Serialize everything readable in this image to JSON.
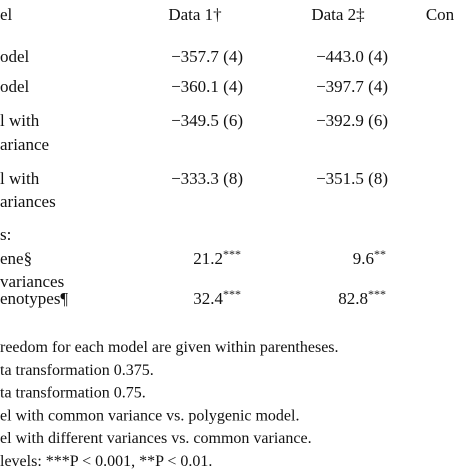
{
  "header": {
    "columns": [
      "el",
      "Data 1†",
      "Data 2‡",
      "Con"
    ]
  },
  "rows": [
    {
      "label": [
        "odel"
      ],
      "data1": "−357.7 (4)",
      "data2": "−443.0 (4)"
    },
    {
      "label": [
        "odel"
      ],
      "data1": "−360.1 (4)",
      "data2": "−397.7 (4)"
    },
    {
      "label": [
        "l with",
        "ariance"
      ],
      "data1": "−349.5 (6)",
      "data2": "−392.9 (6)"
    },
    {
      "label": [
        "l with",
        "ariances"
      ],
      "data1": "−333.3 (8)",
      "data2": "−351.5 (8)"
    },
    {
      "label": [
        "s:"
      ]
    },
    {
      "label": [
        "ene§",
        "variances"
      ],
      "data1": {
        "value": "21.2",
        "stars": "***"
      },
      "data2": {
        "value": "9.6",
        "stars": "**"
      }
    },
    {
      "label": [
        "enotypes¶"
      ],
      "data1": {
        "value": "32.4",
        "stars": "***"
      },
      "data2": {
        "value": "82.8",
        "stars": "***"
      }
    }
  ],
  "footnotes": [
    "reedom for each model are given within parentheses.",
    "ta transformation 0.375.",
    "ta transformation 0.75.",
    "el with common variance vs. polygenic model.",
    "el with different variances vs. common variance.",
    "levels: ***P < 0.001, **P < 0.01."
  ]
}
